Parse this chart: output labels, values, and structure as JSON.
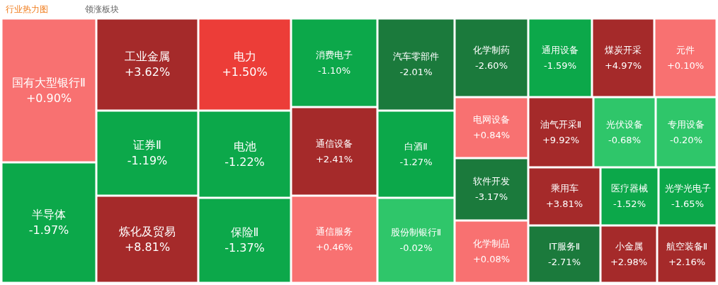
{
  "chart_data": {
    "type": "other",
    "title": "行业热力图",
    "annotations": [
      "领涨板块"
    ],
    "categories": [
      "国有大型银行Ⅱ",
      "半导体",
      "工业金属",
      "证券Ⅱ",
      "炼化及贸易",
      "电力",
      "电池",
      "保险Ⅱ",
      "消费电子",
      "通信设备",
      "通信服务",
      "汽车零部件",
      "白酒Ⅱ",
      "股份制银行Ⅱ",
      "化学制药",
      "通用设备",
      "煤炭开采",
      "元件",
      "电网设备",
      "软件开发",
      "化学制品",
      "油气开采Ⅱ",
      "光伏设备",
      "专用设备",
      "乘用车",
      "医疗器械",
      "光学光电子",
      "IT服务Ⅱ",
      "小金属",
      "航空装备Ⅱ"
    ],
    "values": [
      0.9,
      -1.97,
      3.62,
      -1.19,
      8.81,
      1.5,
      -1.22,
      -1.37,
      -1.1,
      2.41,
      0.46,
      -2.01,
      -1.27,
      -0.02,
      -2.6,
      -1.59,
      4.97,
      0.1,
      0.84,
      -3.17,
      0.08,
      9.92,
      -0.68,
      -0.2,
      3.81,
      -1.52,
      -1.65,
      -2.71,
      2.98,
      2.16
    ],
    "value_labels": [
      "+0.90%",
      "-1.97%",
      "+3.62%",
      "-1.19%",
      "+8.81%",
      "+1.50%",
      "-1.22%",
      "-1.37%",
      "-1.10%",
      "+2.41%",
      "+0.46%",
      "-2.01%",
      "-1.27%",
      "-0.02%",
      "-2.60%",
      "-1.59%",
      "+4.97%",
      "+0.10%",
      "+0.84%",
      "-3.17%",
      "+0.08%",
      "+9.92%",
      "-0.68%",
      "-0.20%",
      "+3.81%",
      "-1.52%",
      "-1.65%",
      "-2.71%",
      "+2.98%",
      "+2.16%"
    ],
    "colors": [
      "#f87171",
      "#0ca84a",
      "#a52a2a",
      "#0ca84a",
      "#a52a2a",
      "#ec3d38",
      "#0ca84a",
      "#0ca84a",
      "#0ca84a",
      "#a52a2a",
      "#f87171",
      "#1b7a3c",
      "#0ca84a",
      "#2fc66a",
      "#1b7a3c",
      "#0ca84a",
      "#a52a2a",
      "#f87171",
      "#f87171",
      "#1b7a3c",
      "#f87171",
      "#a52a2a",
      "#2fc66a",
      "#2fc66a",
      "#a52a2a",
      "#0ca84a",
      "#0ca84a",
      "#1b7a3c",
      "#a52a2a",
      "#a52a2a"
    ]
  }
}
